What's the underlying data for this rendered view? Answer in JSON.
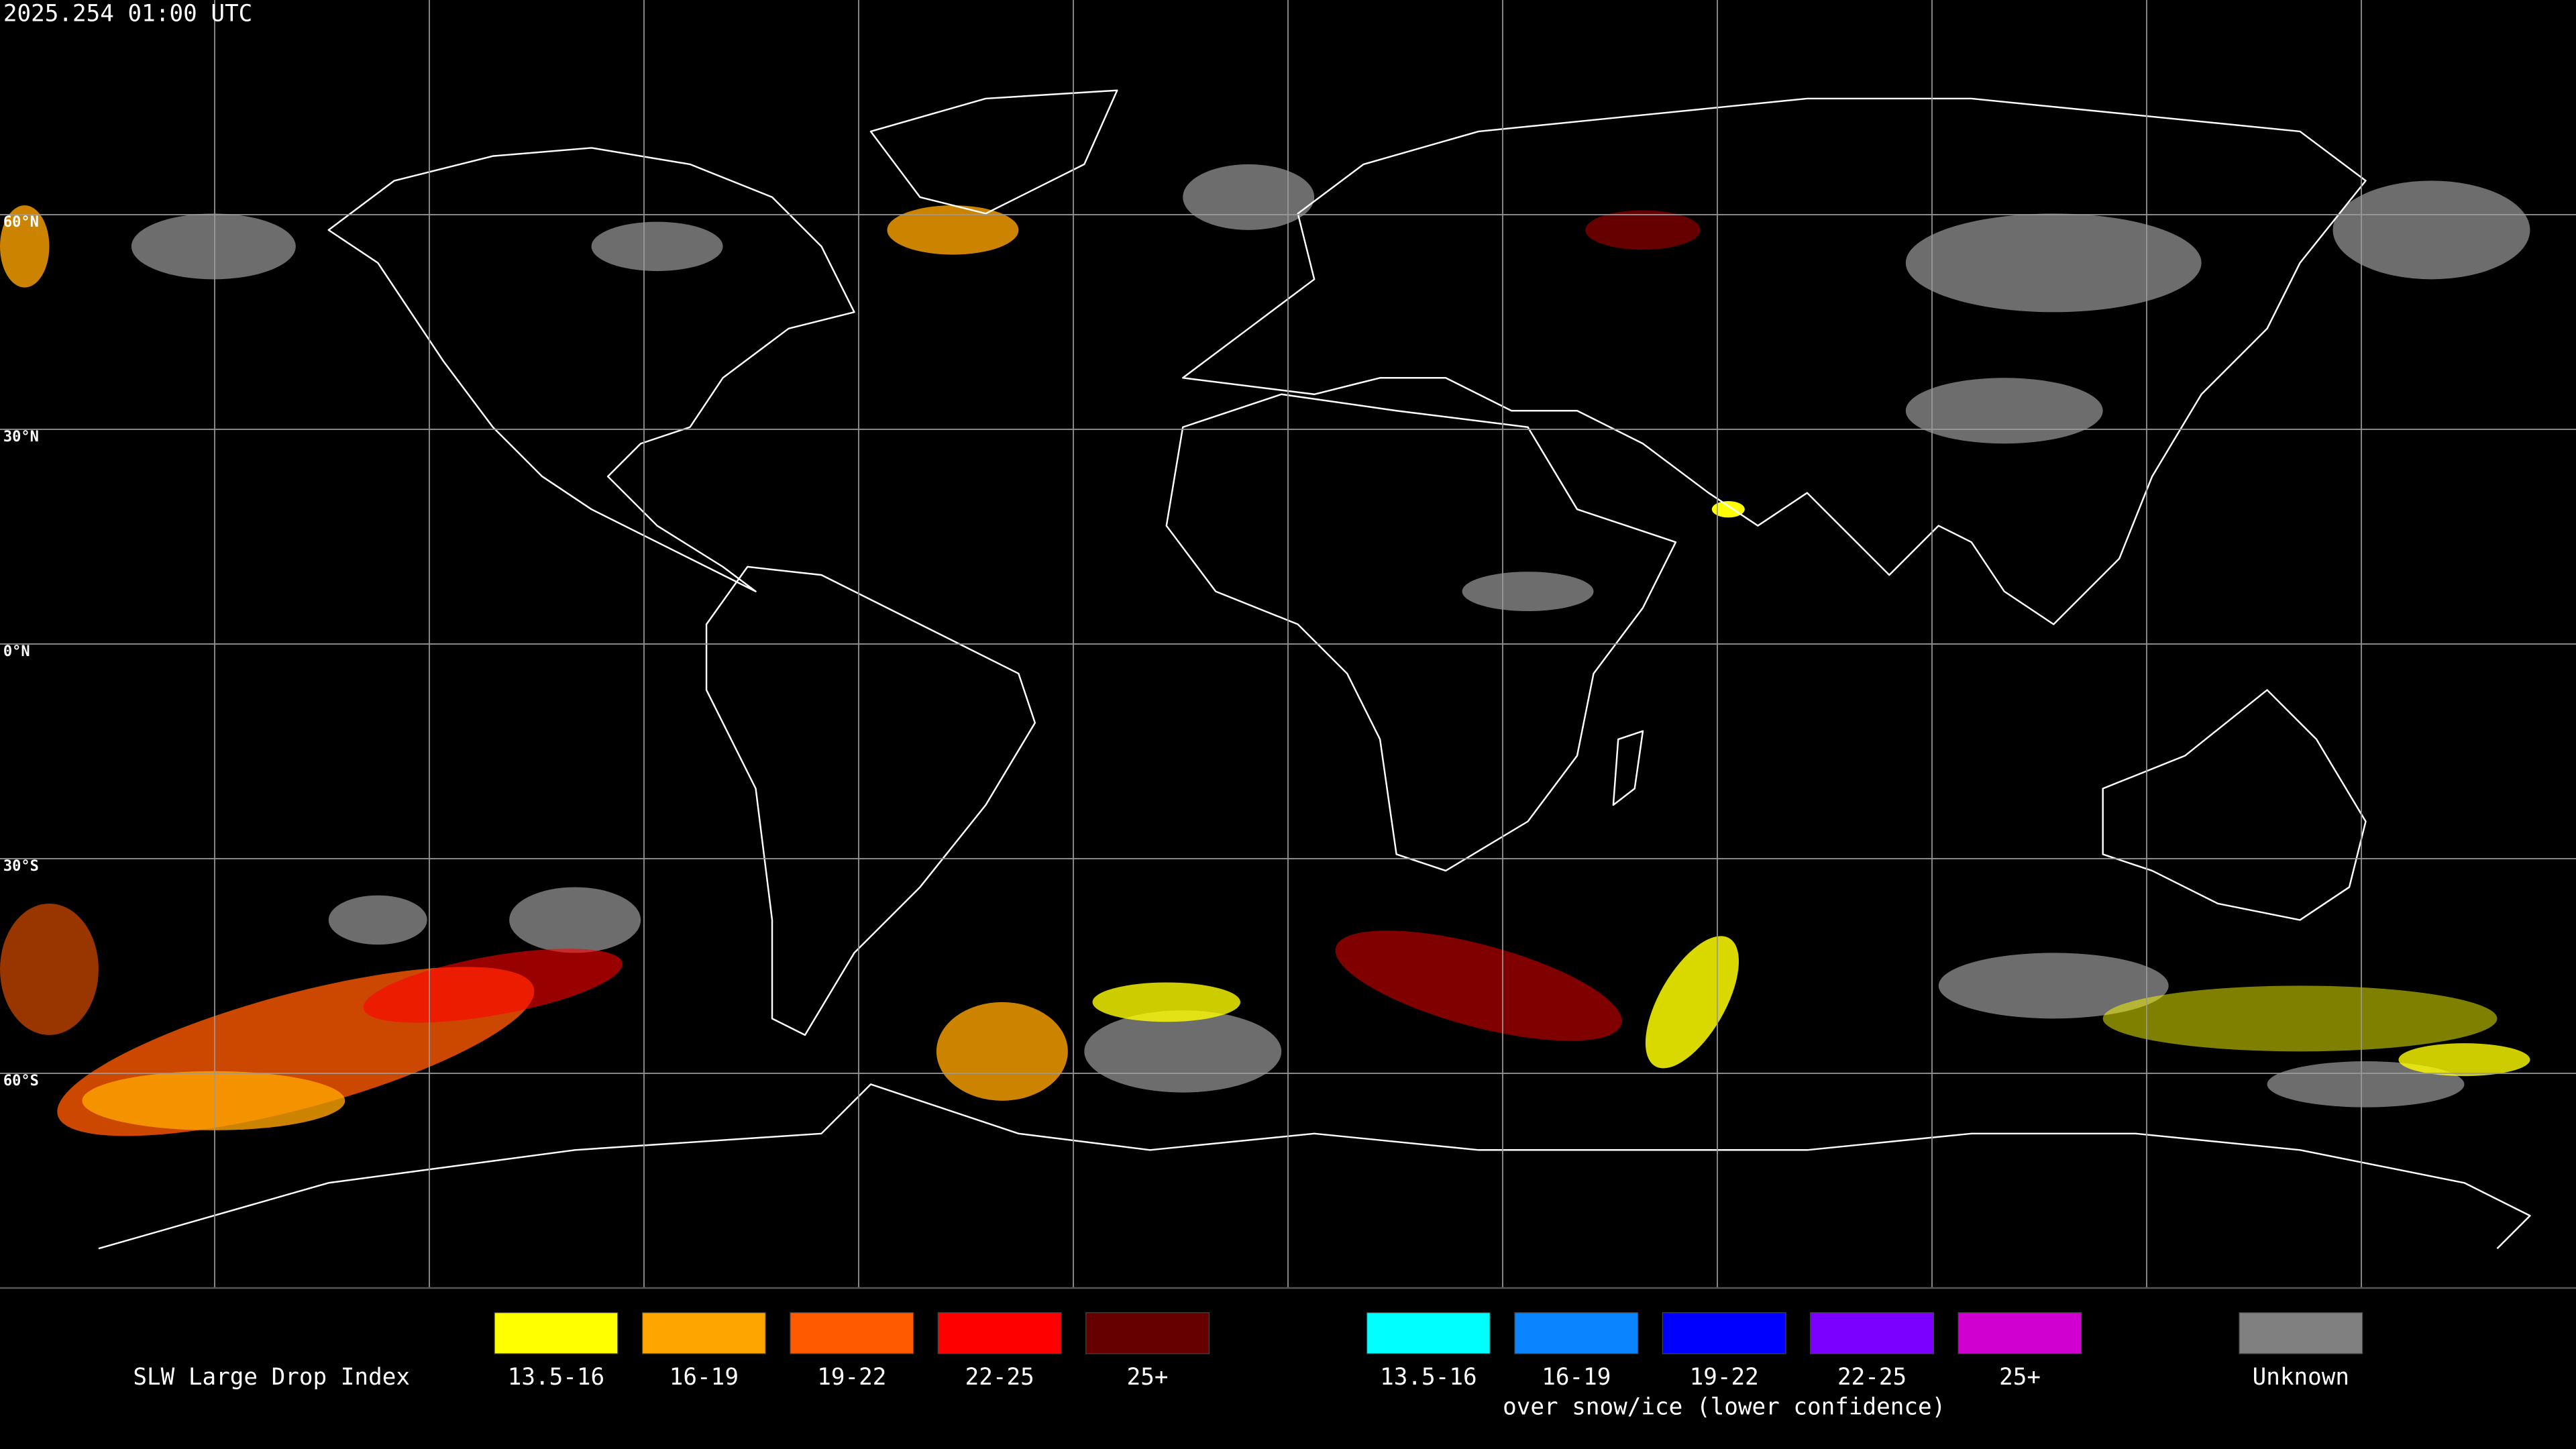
{
  "timestamp": "2025.254 01:00 UTC",
  "latitude_labels": [
    "60°N",
    "30°N",
    "0°N",
    "30°S",
    "60°S"
  ],
  "legend": {
    "title": "SLW Large Drop Index",
    "groups": [
      {
        "items": [
          {
            "label": "13.5-16",
            "color": "#ffff00"
          },
          {
            "label": "16-19",
            "color": "#ffa500"
          },
          {
            "label": "19-22",
            "color": "#ff5a00"
          },
          {
            "label": "22-25",
            "color": "#ff0000"
          },
          {
            "label": "25+",
            "color": "#660000"
          }
        ]
      },
      {
        "items": [
          {
            "label": "13.5-16",
            "color": "#00ffff"
          },
          {
            "label": "16-19",
            "color": "#0a84ff"
          },
          {
            "label": "19-22",
            "color": "#0000ff"
          },
          {
            "label": "22-25",
            "color": "#7a00ff"
          },
          {
            "label": "25+",
            "color": "#d000d0"
          }
        ],
        "caption": "over snow/ice (lower confidence)"
      },
      {
        "items": [
          {
            "label": "Unknown",
            "color": "#808080"
          }
        ]
      }
    ]
  }
}
